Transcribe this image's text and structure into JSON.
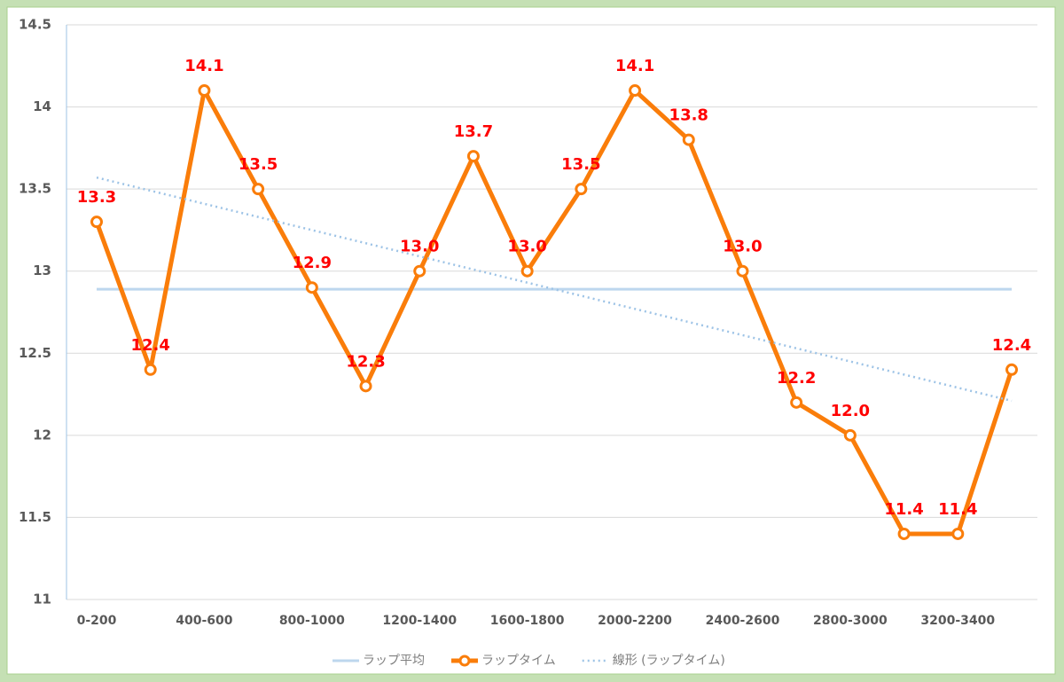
{
  "chart_data": {
    "type": "line",
    "categories": [
      "0-200",
      null,
      "400-600",
      null,
      "800-1000",
      null,
      "1200-1400",
      null,
      "1600-1800",
      null,
      "2000-2200",
      null,
      "2400-2600",
      null,
      "2800-3000",
      null,
      "3200-3400",
      null
    ],
    "series": [
      {
        "name": "ラップ平均",
        "color": "#bdd7ee",
        "values": [
          12.89,
          12.89,
          12.89,
          12.89,
          12.89,
          12.89,
          12.89,
          12.89,
          12.89,
          12.89,
          12.89,
          12.89,
          12.89,
          12.89,
          12.89,
          12.89,
          12.89,
          12.89
        ]
      },
      {
        "name": "ラップタイム",
        "color": "#fa7d0a",
        "markers": true,
        "values": [
          13.3,
          12.4,
          14.1,
          13.5,
          12.9,
          12.3,
          13.0,
          13.7,
          13.0,
          13.5,
          14.1,
          13.8,
          13.0,
          12.2,
          12.0,
          11.4,
          11.4,
          12.4
        ],
        "value_labels": [
          "13.3",
          "12.4",
          "14.1",
          "13.5",
          "12.9",
          "12.3",
          "13.0",
          "13.7",
          "13.0",
          "13.5",
          "14.1",
          "13.8",
          "13.0",
          "12.2",
          "12.0",
          "11.4",
          "11.4",
          "12.4"
        ]
      },
      {
        "name": "線形 (ラップタイム)",
        "color": "#9dc3e6",
        "dashed": true,
        "values": [
          13.57,
          13.49,
          13.41,
          13.33,
          13.25,
          13.17,
          13.09,
          13.01,
          12.93,
          12.85,
          12.77,
          12.69,
          12.61,
          12.53,
          12.45,
          12.37,
          12.29,
          12.21
        ]
      }
    ],
    "ylim": [
      11,
      14.5
    ],
    "yticks": [
      11,
      11.5,
      12,
      12.5,
      13,
      13.5,
      14,
      14.5
    ],
    "grid": true,
    "legend": "bottom"
  }
}
